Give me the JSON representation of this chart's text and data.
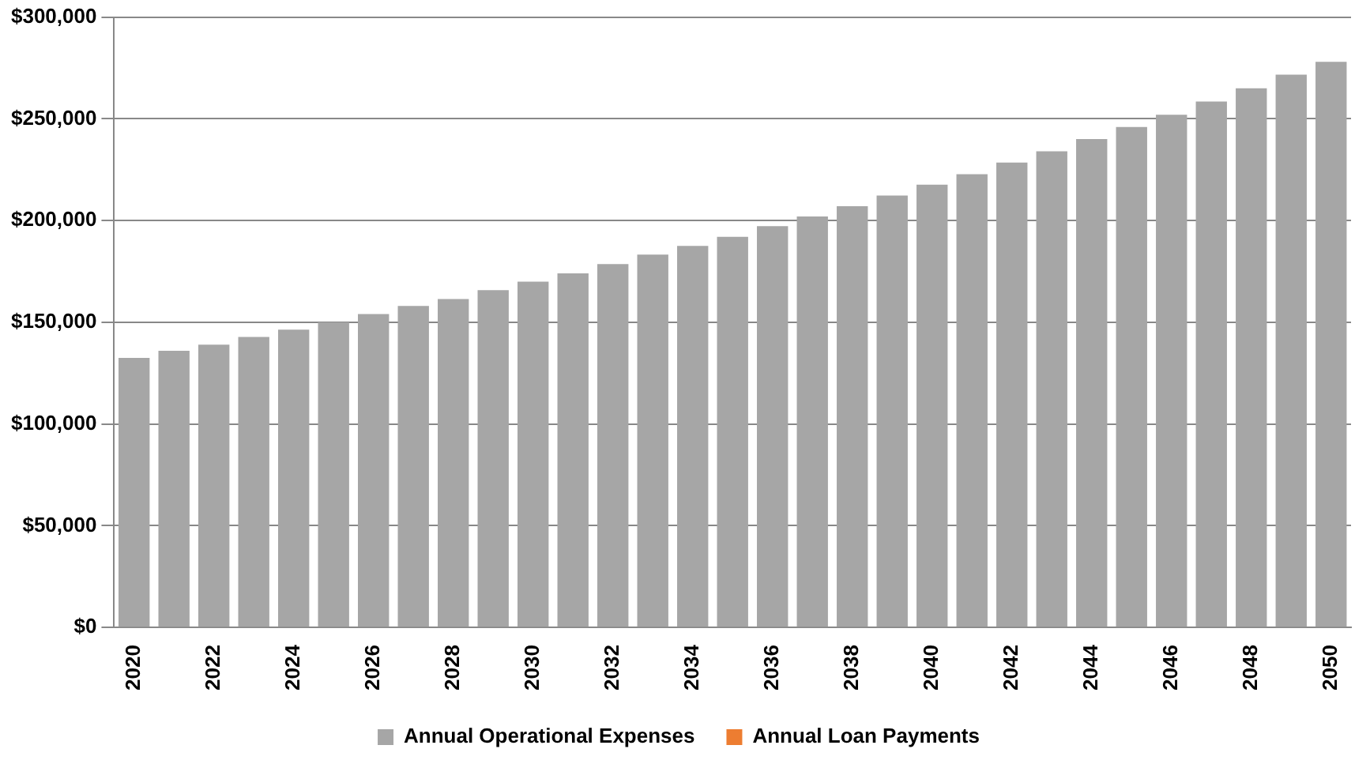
{
  "chart_data": {
    "type": "bar",
    "stacked": true,
    "categories": [
      "2020",
      null,
      "2022",
      null,
      "2024",
      null,
      "2026",
      null,
      "2028",
      null,
      "2030",
      null,
      "2032",
      null,
      "2034",
      null,
      "2036",
      null,
      "2038",
      null,
      "2040",
      null,
      "2042",
      null,
      "2044",
      null,
      "2046",
      null,
      "2048",
      null,
      "2050"
    ],
    "series": [
      {
        "name": "Annual Operational Expenses",
        "color": "#a6a6a6",
        "values": [
          132500,
          136000,
          139000,
          142800,
          146400,
          150000,
          154000,
          158000,
          161400,
          165800,
          170000,
          174000,
          178600,
          183300,
          187500,
          192000,
          197200,
          202000,
          207000,
          212300,
          217600,
          222800,
          228500,
          234000,
          240000,
          246000,
          252000,
          258500,
          265000,
          271700,
          278000
        ]
      },
      {
        "name": "Annual Loan Payments",
        "color": "#ed7d31",
        "values": [
          null,
          null,
          null,
          null,
          null,
          null,
          null,
          null,
          null,
          null,
          null,
          null,
          null,
          null,
          null,
          null,
          null,
          null,
          null,
          null,
          null,
          null,
          null,
          null,
          null,
          null,
          null,
          null,
          null,
          null,
          null
        ]
      }
    ],
    "ylim": [
      0,
      300000
    ],
    "yticks": [
      {
        "value": 0,
        "label": "$0"
      },
      {
        "value": 50000,
        "label": "$50,000"
      },
      {
        "value": 100000,
        "label": "$100,000"
      },
      {
        "value": 150000,
        "label": "$150,000"
      },
      {
        "value": 200000,
        "label": "$200,000"
      },
      {
        "value": 250000,
        "label": "$250,000"
      },
      {
        "value": 300000,
        "label": "$300,000"
      }
    ],
    "grid": "y",
    "legend": "bottom"
  }
}
